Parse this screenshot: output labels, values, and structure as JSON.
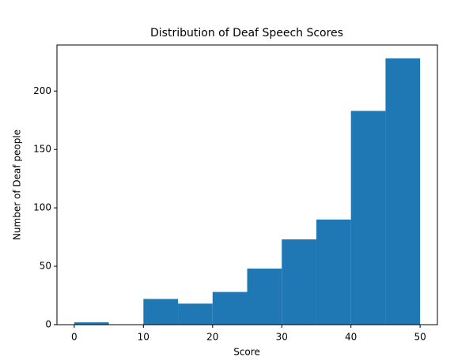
{
  "chart_data": {
    "type": "histogram",
    "title": "Distribution of Deaf Speech Scores",
    "x_label": "Score",
    "y_label": "Number of Deaf people",
    "bins": [
      0,
      5,
      10,
      15,
      20,
      25,
      30,
      35,
      40,
      45,
      50
    ],
    "values": [
      2,
      0,
      22,
      18,
      28,
      48,
      73,
      90,
      183,
      228
    ],
    "color": "#1f77b4",
    "xlim": [
      -2.5,
      52.5
    ],
    "xticks": [
      0,
      10,
      20,
      30,
      40,
      50
    ],
    "ylim": [
      0,
      239.4
    ],
    "yticks": [
      0,
      50,
      100,
      150,
      200
    ]
  }
}
